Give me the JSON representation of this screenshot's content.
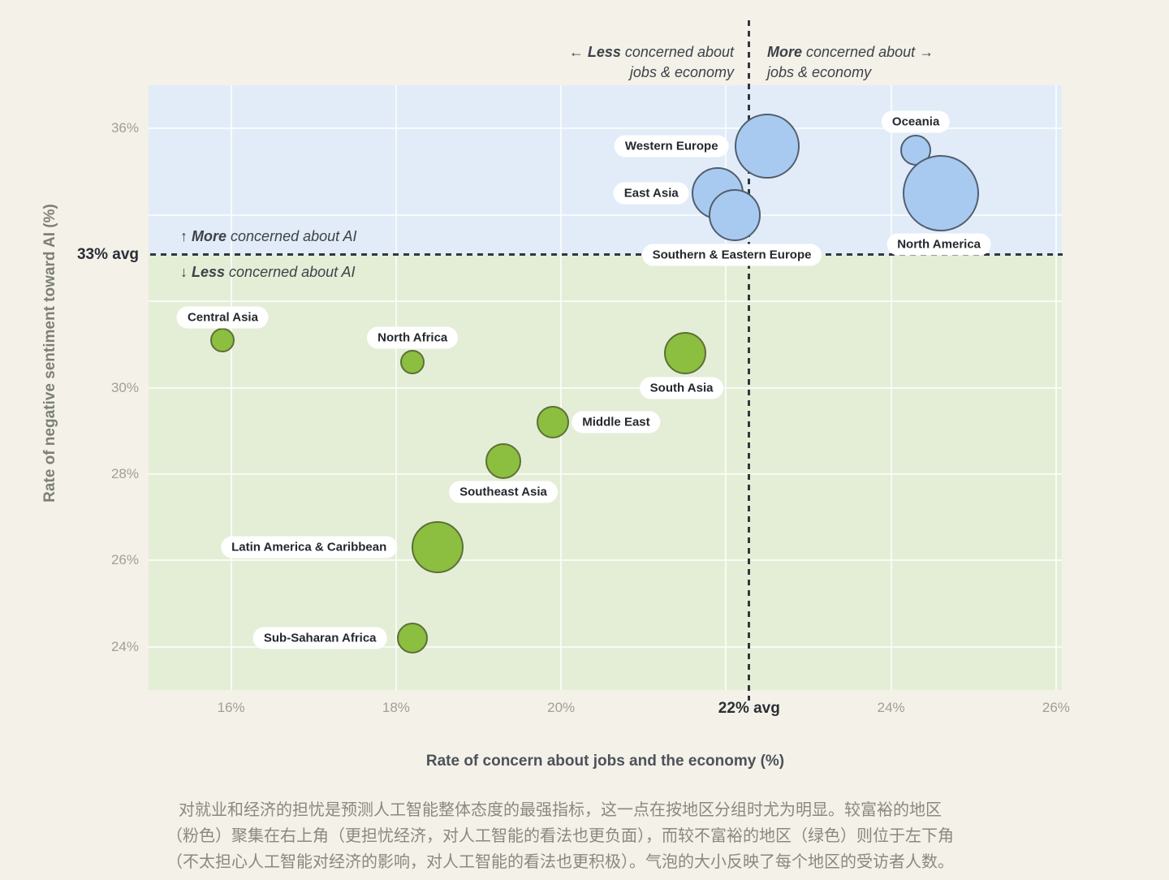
{
  "chart_data": {
    "type": "scatter",
    "title": "",
    "xlabel": "Rate of concern about jobs and the economy (%)",
    "ylabel": "Rate of negative sentiment toward AI (%)",
    "xlim": [
      15,
      26.07
    ],
    "ylim": [
      23,
      37
    ],
    "grid": true,
    "xticks": [
      {
        "value": 16,
        "label": "16%"
      },
      {
        "value": 18,
        "label": "18%"
      },
      {
        "value": 20,
        "label": "20%"
      },
      {
        "value": 22,
        "label": ""
      },
      {
        "value": 24,
        "label": "24%"
      },
      {
        "value": 26,
        "label": "26%"
      }
    ],
    "yticks": [
      {
        "value": 36,
        "label": "36%"
      },
      {
        "value": 34,
        "label": ""
      },
      {
        "value": 32,
        "label": ""
      },
      {
        "value": 30,
        "label": "30%"
      },
      {
        "value": 28,
        "label": "28%"
      },
      {
        "value": 26,
        "label": "26%"
      },
      {
        "value": 24,
        "label": "24%"
      }
    ],
    "x_avg": {
      "value": 22.28,
      "label": "22% avg"
    },
    "y_avg": {
      "value": 33.08,
      "label": "33% avg"
    },
    "bands": {
      "above_color": "#e2ecf8",
      "below_color": "#e4eed7"
    },
    "series": [
      {
        "name": "blue-regions",
        "color": "#a9caf0",
        "stroke": "#515e6e",
        "points": [
          {
            "name": "Western Europe",
            "x": 22.5,
            "y": 35.6,
            "r": 40,
            "label_dx": -118,
            "label_dy": 0
          },
          {
            "name": "East Asia",
            "x": 21.9,
            "y": 34.5,
            "r": 32,
            "label_dx": -82,
            "label_dy": 0
          },
          {
            "name": "Southern & Eastern Europe",
            "x": 22.1,
            "y": 34.0,
            "r": 32,
            "label_dx": -3,
            "label_dy": 49
          },
          {
            "name": "Oceania",
            "x": 24.3,
            "y": 35.5,
            "r": 19,
            "label_dx": 0,
            "label_dy": -35
          },
          {
            "name": "North America",
            "x": 24.6,
            "y": 34.5,
            "r": 47,
            "label_dx": -2,
            "label_dy": 63
          }
        ]
      },
      {
        "name": "green-regions",
        "color": "#8cbe40",
        "stroke": "#5c7038",
        "points": [
          {
            "name": "Central Asia",
            "x": 15.9,
            "y": 31.1,
            "r": 15,
            "label_dx": 0,
            "label_dy": -28
          },
          {
            "name": "North Africa",
            "x": 18.2,
            "y": 30.6,
            "r": 15,
            "label_dx": 0,
            "label_dy": -30
          },
          {
            "name": "South Asia",
            "x": 21.5,
            "y": 30.8,
            "r": 26,
            "label_dx": -4,
            "label_dy": 43
          },
          {
            "name": "Middle East",
            "x": 19.9,
            "y": 29.2,
            "r": 20,
            "label_dx": 78,
            "label_dy": 0
          },
          {
            "name": "Southeast Asia",
            "x": 19.3,
            "y": 28.3,
            "r": 22,
            "label_dx": 0,
            "label_dy": 38
          },
          {
            "name": "Latin America & Caribbean",
            "x": 18.5,
            "y": 26.3,
            "r": 32,
            "label_dx": -158,
            "label_dy": 0
          },
          {
            "name": "Sub-Saharan Africa",
            "x": 18.2,
            "y": 24.2,
            "r": 19,
            "label_dx": -114,
            "label_dy": 0
          }
        ]
      }
    ]
  },
  "annotations": {
    "jobs_less": {
      "arrow": "← ",
      "bold": "Less",
      "rest": " concerned about",
      "line2": "jobs & economy"
    },
    "jobs_more": {
      "bold": "More",
      "rest": " concerned about ",
      "arrow": "→",
      "line2": "jobs & economy"
    },
    "ai_more": {
      "arrow": "↑ ",
      "bold": "More",
      "rest": " concerned about AI"
    },
    "ai_less": {
      "arrow": "↓ ",
      "bold": "Less",
      "rest": " concerned about AI"
    }
  },
  "caption": {
    "lines": [
      "对就业和经济的担忧是预测人工智能整体态度的最强指标，这一点在按地区分组时尤为明显。较富裕的地区",
      "（粉色）聚集在右上角（更担忧经济，对人工智能的看法也更负面），而较不富裕的地区（绿色）则位于左下角",
      "（不太担心人工智能对经济的影响，对人工智能的看法也更积极）。气泡的大小反映了每个地区的受访者人数。"
    ]
  }
}
